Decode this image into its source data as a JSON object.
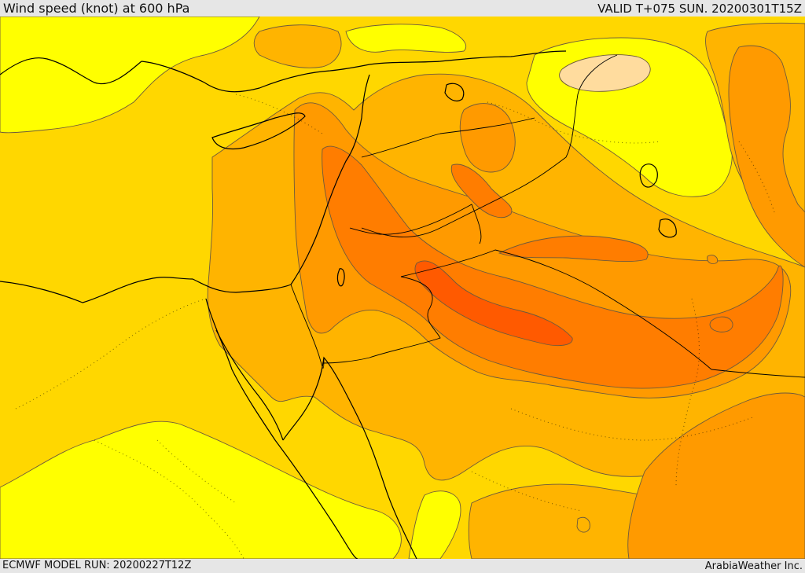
{
  "header": {
    "title": "Wind speed (knot) at 600 hPa",
    "valid": "VALID T+075 SUN. 20200301T15Z"
  },
  "footer": {
    "model_run": "ECMWF MODEL RUN: 20200227T12Z",
    "credit": "ArabiaWeather Inc."
  },
  "colors": {
    "band_lowest": "#ffff00",
    "band_low": "#ffd700",
    "band_mid": "#ffb400",
    "band_high": "#ff9a00",
    "band_higher": "#ff7d00",
    "band_highest": "#ff5a00",
    "calm_patch": "#ffdc9e",
    "coastline": "#000000"
  }
}
